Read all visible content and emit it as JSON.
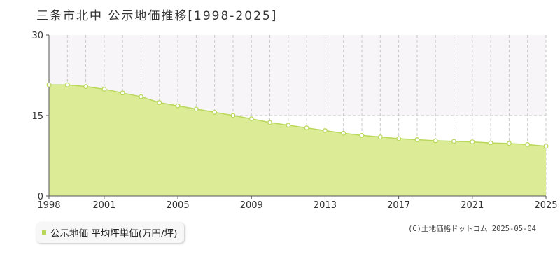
{
  "title": "三条市北中 公示地価推移[1998-2025]",
  "legend": {
    "label": "公示地価 平均坪単価(万円/坪)"
  },
  "copyright": "(C)土地価格ドットコム 2025-05-04",
  "colors": {
    "area_fill": "#dcec96",
    "area_line": "#b9d85a",
    "marker_fill": "#ffffff",
    "marker_stroke": "#b9d85a",
    "grid": "#c8c8c8",
    "upper_band": "#f7f5f8",
    "legend_swatch": "#b9d85a"
  },
  "chart_data": {
    "type": "area",
    "x": [
      1998,
      1999,
      2000,
      2001,
      2002,
      2003,
      2004,
      2005,
      2006,
      2007,
      2008,
      2009,
      2010,
      2011,
      2012,
      2013,
      2014,
      2015,
      2016,
      2017,
      2018,
      2019,
      2020,
      2021,
      2022,
      2023,
      2024,
      2025
    ],
    "series": [
      {
        "name": "公示地価 平均坪単価(万円/坪)",
        "values": [
          20.7,
          20.7,
          20.4,
          19.9,
          19.2,
          18.5,
          17.4,
          16.8,
          16.2,
          15.6,
          15.0,
          14.4,
          13.7,
          13.2,
          12.7,
          12.2,
          11.7,
          11.3,
          11.0,
          10.7,
          10.5,
          10.3,
          10.2,
          10.1,
          9.9,
          9.8,
          9.6,
          9.3
        ]
      }
    ],
    "xticks": [
      "1998",
      "2001",
      "2005",
      "2009",
      "2013",
      "2017",
      "2021",
      "2025"
    ],
    "yticks": [
      "0",
      "15",
      "30"
    ],
    "xlim": [
      1998,
      2025
    ],
    "ylim": [
      0,
      30
    ],
    "grid": "vertical dashed per year, horizontal dashed at 15",
    "legend_position": "bottom-left"
  }
}
